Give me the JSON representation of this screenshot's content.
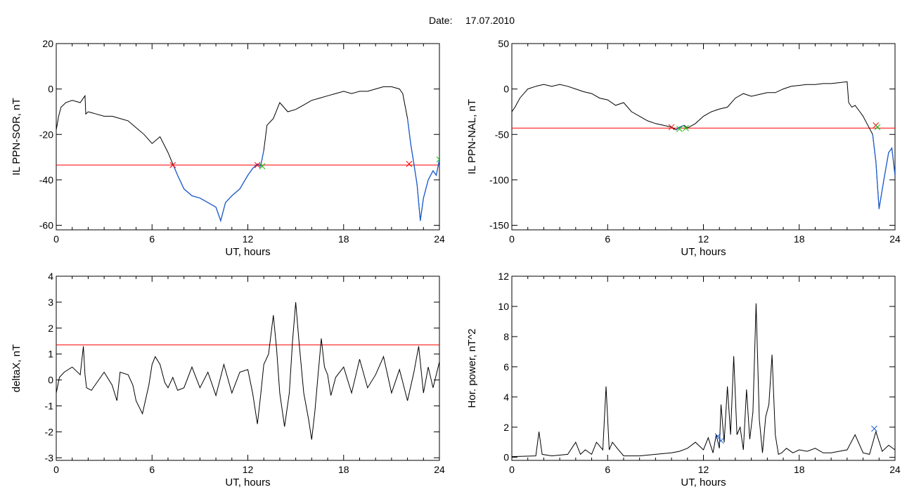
{
  "header": {
    "date_label": "Date:",
    "date_value": "17.07.2010"
  },
  "colors": {
    "trace": "#000000",
    "threshold": "#ff0000",
    "segment": "#1f5fd0",
    "marker_start": "#ff0000",
    "marker_end": "#00c000",
    "marker_power": "#1f5fd0"
  },
  "chart_data": [
    {
      "type": "line",
      "ylabel": "IL PPN-SOR, nT",
      "xlabel": "UT, hours",
      "xlim": [
        0,
        24
      ],
      "ylim": [
        -62,
        20
      ],
      "xticks": [
        0,
        6,
        12,
        18,
        24
      ],
      "yticks": [
        -60,
        -40,
        -20,
        0,
        20
      ],
      "threshold": -33.5,
      "series": [
        {
          "x": [
            0,
            0.15,
            0.3,
            0.6,
            1.0,
            1.5,
            1.7,
            1.8,
            1.85,
            2.0,
            2.5,
            3.0,
            3.5,
            4.0,
            4.5,
            5.0,
            5.5,
            6.0,
            6.5,
            7.0,
            7.3,
            7.6,
            8.0,
            8.5,
            9.0,
            9.5,
            10.0,
            10.3,
            10.6,
            11.0,
            11.5,
            12.0,
            12.3,
            12.6,
            12.8,
            13.0,
            13.2,
            13.6,
            14.0,
            14.5,
            15.0,
            15.5,
            16.0,
            16.5,
            17.0,
            17.5,
            18.0,
            18.5,
            19.0,
            19.5,
            20.0,
            20.5,
            21.0,
            21.5,
            21.7,
            22.0,
            22.2,
            22.4,
            22.6,
            22.8,
            23.0,
            23.3,
            23.6,
            23.8,
            24.0
          ],
          "y": [
            -18,
            -12,
            -8,
            -6,
            -5,
            -6,
            -4,
            -3,
            -11,
            -10,
            -11,
            -12,
            -12,
            -13,
            -14,
            -17,
            -20,
            -24,
            -21,
            -28,
            -33,
            -38,
            -44,
            -47,
            -48,
            -50,
            -52,
            -58,
            -50,
            -47,
            -44,
            -38,
            -35,
            -33,
            -34,
            -27,
            -16,
            -13,
            -6,
            -10,
            -9,
            -7,
            -5,
            -4,
            -3,
            -2,
            -1,
            -2,
            -1,
            -1,
            0,
            1,
            1,
            0,
            -2,
            -13,
            -24,
            -33,
            -42,
            -58,
            -48,
            -40,
            -36,
            -38,
            -31
          ]
        }
      ],
      "highlight": [
        7.3,
        13.0
      ],
      "highlight2": [
        22.0,
        24.0
      ],
      "markers_start": [
        {
          "x": 7.3,
          "y": -33.5
        },
        {
          "x": 12.6,
          "y": -33.5
        },
        {
          "x": 22.1,
          "y": -33
        }
      ],
      "markers_end": [
        {
          "x": 12.9,
          "y": -34
        },
        {
          "x": 24.0,
          "y": -31
        }
      ]
    },
    {
      "type": "line",
      "ylabel": "IL PPN-NAL, nT",
      "xlabel": "UT, hours",
      "xlim": [
        0,
        24
      ],
      "ylim": [
        -155,
        50
      ],
      "xticks": [
        0,
        6,
        12,
        18,
        24
      ],
      "yticks": [
        -150,
        -100,
        -50,
        0,
        50
      ],
      "threshold": -43,
      "series": [
        {
          "x": [
            0,
            0.2,
            0.5,
            1.0,
            1.5,
            2.0,
            2.5,
            3.0,
            3.5,
            4.0,
            4.5,
            5.0,
            5.5,
            6.0,
            6.5,
            7.0,
            7.5,
            8.0,
            8.5,
            9.0,
            9.5,
            10.0,
            10.3,
            10.5,
            10.8,
            11.0,
            11.5,
            12.0,
            12.5,
            13.0,
            13.5,
            14.0,
            14.5,
            15.0,
            15.5,
            16.0,
            16.5,
            17.0,
            17.5,
            18.0,
            18.5,
            19.0,
            19.5,
            20.0,
            20.5,
            21.0,
            21.1,
            21.3,
            21.5,
            21.8,
            22.0,
            22.3,
            22.6,
            22.8,
            23.0,
            23.3,
            23.6,
            23.8,
            24.0
          ],
          "y": [
            -25,
            -20,
            -10,
            0,
            3,
            5,
            3,
            5,
            3,
            0,
            -3,
            -5,
            -10,
            -12,
            -18,
            -15,
            -25,
            -30,
            -35,
            -38,
            -40,
            -42,
            -45,
            -42,
            -40,
            -43,
            -38,
            -30,
            -25,
            -22,
            -20,
            -10,
            -5,
            -8,
            -6,
            -4,
            -4,
            0,
            3,
            4,
            5,
            5,
            6,
            6,
            7,
            8,
            -15,
            -20,
            -18,
            -25,
            -30,
            -40,
            -50,
            -80,
            -132,
            -100,
            -70,
            -65,
            -95
          ]
        }
      ],
      "highlight": [
        10.3,
        10.8
      ],
      "highlight2": [
        22.5,
        24.0
      ],
      "markers_start": [
        {
          "x": 10.0,
          "y": -42
        },
        {
          "x": 22.8,
          "y": -40
        }
      ],
      "markers_end": [
        {
          "x": 10.5,
          "y": -44
        },
        {
          "x": 10.9,
          "y": -43
        },
        {
          "x": 22.9,
          "y": -42
        }
      ]
    },
    {
      "type": "line",
      "ylabel": "deltaX, nT",
      "xlabel": "UT, hours",
      "xlim": [
        0,
        24
      ],
      "ylim": [
        -3.1,
        4.0
      ],
      "xticks": [
        0,
        6,
        12,
        18,
        24
      ],
      "yticks": [
        -3,
        -2,
        -1,
        0,
        1,
        2,
        3,
        4
      ],
      "threshold": 1.35,
      "series": [
        {
          "x": [
            0,
            0.2,
            0.5,
            1.0,
            1.5,
            1.7,
            1.8,
            1.9,
            2.2,
            3.0,
            3.5,
            3.8,
            4.0,
            4.5,
            4.8,
            5.0,
            5.4,
            5.8,
            6.0,
            6.2,
            6.5,
            6.8,
            7.0,
            7.3,
            7.6,
            8.0,
            8.5,
            9.0,
            9.5,
            10.0,
            10.5,
            11.0,
            11.5,
            12.0,
            12.3,
            12.6,
            12.8,
            13.0,
            13.3,
            13.6,
            13.8,
            14.0,
            14.3,
            14.6,
            14.8,
            15.0,
            15.2,
            15.5,
            15.8,
            16.0,
            16.2,
            16.4,
            16.6,
            16.8,
            17.0,
            17.2,
            17.5,
            18.0,
            18.5,
            19.0,
            19.5,
            20.0,
            20.5,
            21.0,
            21.5,
            22.0,
            22.4,
            22.7,
            23.0,
            23.3,
            23.6,
            24.0
          ],
          "y": [
            -0.5,
            0.1,
            0.3,
            0.5,
            0.2,
            1.3,
            0.2,
            -0.3,
            -0.4,
            0.3,
            -0.2,
            -0.8,
            0.3,
            0.2,
            -0.2,
            -0.8,
            -1.3,
            -0.2,
            0.6,
            0.9,
            0.6,
            -0.1,
            -0.3,
            0.1,
            -0.4,
            -0.3,
            0.5,
            -0.3,
            0.3,
            -0.6,
            0.6,
            -0.5,
            0.3,
            0.4,
            -0.5,
            -1.7,
            -0.6,
            0.6,
            1.0,
            2.5,
            1.2,
            -0.5,
            -1.8,
            -0.5,
            1.5,
            3.0,
            1.5,
            -0.5,
            -1.5,
            -2.3,
            -1.2,
            0.2,
            1.6,
            0.5,
            0.2,
            -0.6,
            0.1,
            0.5,
            -0.5,
            0.8,
            -0.3,
            0.2,
            0.9,
            -0.5,
            0.4,
            -0.8,
            0.3,
            1.3,
            -0.5,
            0.5,
            -0.3,
            0.7
          ]
        }
      ]
    },
    {
      "type": "line",
      "ylabel": "Hor. power, nT^2",
      "xlabel": "UT, hours",
      "xlim": [
        0,
        24
      ],
      "ylim": [
        -0.2,
        12
      ],
      "xticks": [
        0,
        6,
        12,
        18,
        24
      ],
      "yticks": [
        0,
        2,
        4,
        6,
        8,
        10,
        12
      ],
      "series": [
        {
          "x": [
            0,
            1.5,
            1.7,
            1.9,
            2.5,
            3.5,
            4.0,
            4.3,
            4.6,
            5.0,
            5.3,
            5.7,
            5.9,
            6.1,
            6.3,
            6.6,
            7.0,
            8.0,
            9.0,
            10.0,
            10.5,
            11.0,
            11.5,
            12.0,
            12.3,
            12.6,
            12.8,
            13.0,
            13.1,
            13.3,
            13.5,
            13.7,
            13.9,
            14.1,
            14.3,
            14.5,
            14.7,
            14.9,
            15.1,
            15.3,
            15.5,
            15.7,
            15.9,
            16.1,
            16.3,
            16.5,
            16.7,
            16.9,
            17.2,
            17.6,
            18.0,
            18.5,
            19.0,
            19.5,
            20.0,
            20.5,
            21.0,
            21.5,
            22.0,
            22.4,
            22.8,
            23.2,
            23.6,
            24.0
          ],
          "y": [
            0.05,
            0.1,
            1.7,
            0.2,
            0.1,
            0.2,
            1.0,
            0.2,
            0.5,
            0.2,
            1.0,
            0.5,
            4.7,
            0.5,
            1.0,
            0.6,
            0.1,
            0.1,
            0.2,
            0.3,
            0.4,
            0.6,
            1.0,
            0.5,
            1.3,
            0.3,
            1.5,
            0.6,
            3.5,
            1.0,
            4.7,
            1.5,
            6.7,
            1.5,
            2.0,
            0.5,
            4.5,
            1.2,
            3.0,
            10.2,
            2.5,
            0.3,
            2.7,
            3.5,
            6.8,
            1.5,
            0.2,
            0.3,
            0.6,
            0.3,
            0.5,
            0.4,
            0.6,
            0.3,
            0.3,
            0.4,
            0.5,
            1.5,
            0.3,
            0.2,
            1.7,
            0.4,
            0.8,
            0.5
          ]
        }
      ],
      "markers_power": [
        {
          "x": 12.9,
          "y": 1.4
        },
        {
          "x": 13.1,
          "y": 1.1
        },
        {
          "x": 22.7,
          "y": 1.9
        }
      ]
    }
  ]
}
